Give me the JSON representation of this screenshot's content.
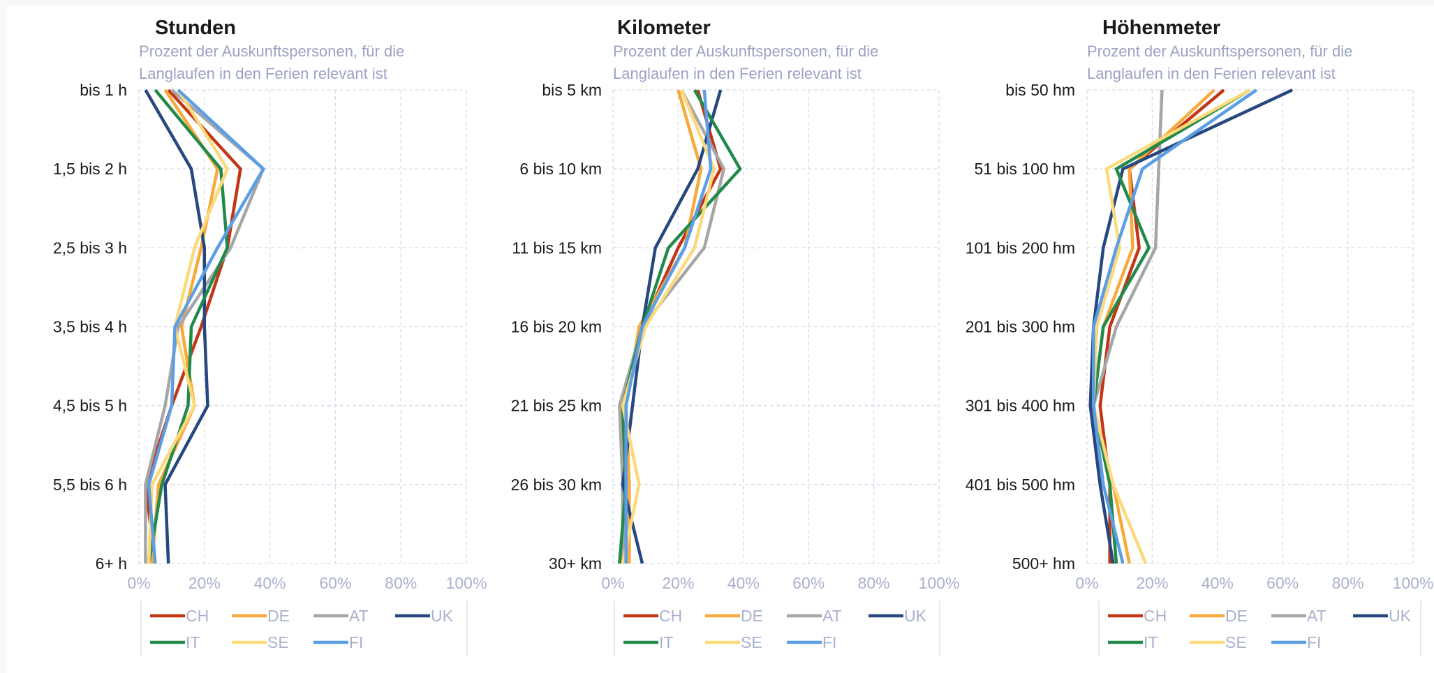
{
  "colors": {
    "CH": "#c23616",
    "DE": "#f7a93b",
    "AT": "#a6a6a6",
    "UK": "#27477f",
    "IT": "#22894a",
    "SE": "#fcd97a",
    "FI": "#5b9ee6"
  },
  "chart_data": [
    {
      "type": "line",
      "orientation": "horizontal-values",
      "title": "Stunden",
      "subtitle_line1": "Prozent der Auskunftspersonen, für die",
      "subtitle_line2": "Langlaufen in den Ferien relevant ist",
      "categories": [
        "bis 1 h",
        "1,5 bis 2 h",
        "2,5 bis 3 h",
        "3,5 bis 4 h",
        "4,5 bis 5 h",
        "5,5 bis 6 h",
        "6+ h"
      ],
      "x_ticks": [
        "0%",
        "20%",
        "40%",
        "60%",
        "80%",
        "100%"
      ],
      "xlim": [
        0,
        100
      ],
      "grid": true,
      "legend": "bottom",
      "series": [
        {
          "name": "CH",
          "values": [
            9,
            31,
            27,
            19,
            10,
            2,
            5
          ]
        },
        {
          "name": "DE",
          "values": [
            8,
            24,
            19,
            13,
            17,
            6,
            4
          ]
        },
        {
          "name": "AT",
          "values": [
            10,
            38,
            28,
            12,
            8,
            2,
            2
          ]
        },
        {
          "name": "UK",
          "values": [
            2,
            16,
            20,
            20,
            21,
            8,
            9
          ]
        },
        {
          "name": "IT",
          "values": [
            5,
            25,
            27,
            16,
            15,
            7,
            3
          ]
        },
        {
          "name": "SE",
          "values": [
            12,
            27,
            17,
            11,
            17,
            4,
            3
          ]
        },
        {
          "name": "FI",
          "values": [
            12,
            38,
            24,
            11,
            10,
            3,
            5
          ]
        }
      ]
    },
    {
      "type": "line",
      "orientation": "horizontal-values",
      "title": "Kilometer",
      "subtitle_line1": "Prozent der Auskunftspersonen, für die",
      "subtitle_line2": "Langlaufen in den Ferien relevant ist",
      "categories": [
        "bis 5 km",
        "6 bis 10 km",
        "11 bis 15 km",
        "16 bis 20 km",
        "21 bis 25 km",
        "26 bis 30 km",
        "30+ km"
      ],
      "x_ticks": [
        "0%",
        "20%",
        "40%",
        "60%",
        "80%",
        "100%"
      ],
      "xlim": [
        0,
        100
      ],
      "grid": true,
      "legend": "bottom",
      "series": [
        {
          "name": "CH",
          "values": [
            26,
            33,
            20,
            9,
            3,
            3,
            3
          ]
        },
        {
          "name": "DE",
          "values": [
            20,
            27,
            22,
            8,
            4,
            5,
            5
          ]
        },
        {
          "name": "AT",
          "values": [
            21,
            34,
            28,
            9,
            2,
            3,
            3
          ]
        },
        {
          "name": "UK",
          "values": [
            33,
            26,
            13,
            9,
            6,
            3,
            9
          ]
        },
        {
          "name": "IT",
          "values": [
            25,
            39,
            17,
            9,
            3,
            4,
            2
          ]
        },
        {
          "name": "SE",
          "values": [
            21,
            31,
            25,
            10,
            3,
            8,
            3
          ]
        },
        {
          "name": "FI",
          "values": [
            28,
            30,
            22,
            9,
            4,
            4,
            4
          ]
        }
      ]
    },
    {
      "type": "line",
      "orientation": "horizontal-values",
      "title": "Höhenmeter",
      "subtitle_line1": "Prozent der Auskunftspersonen, für die",
      "subtitle_line2": "Langlaufen in den Ferien relevant ist",
      "categories": [
        "bis 50 hm",
        "51 bis 100 hm",
        "101 bis 200 hm",
        "201 bis 300 hm",
        "301 bis 400 hm",
        "401 bis 500 hm",
        "500+ hm"
      ],
      "x_ticks": [
        "0%",
        "20%",
        "40%",
        "60%",
        "80%",
        "100%"
      ],
      "xlim": [
        0,
        100
      ],
      "grid": true,
      "legend": "bottom",
      "series": [
        {
          "name": "CH",
          "values": [
            42,
            13,
            16,
            7,
            4,
            7,
            7
          ]
        },
        {
          "name": "DE",
          "values": [
            39,
            13,
            14,
            5,
            2,
            8,
            13
          ]
        },
        {
          "name": "AT",
          "values": [
            23,
            22,
            21,
            9,
            2,
            7,
            9
          ]
        },
        {
          "name": "UK",
          "values": [
            63,
            11,
            5,
            2,
            1,
            4,
            8
          ]
        },
        {
          "name": "IT",
          "values": [
            50,
            9,
            19,
            5,
            2,
            7,
            9
          ]
        },
        {
          "name": "SE",
          "values": [
            50,
            6,
            10,
            3,
            2,
            8,
            18
          ]
        },
        {
          "name": "FI",
          "values": [
            52,
            17,
            9,
            2,
            2,
            5,
            11
          ]
        }
      ]
    }
  ]
}
